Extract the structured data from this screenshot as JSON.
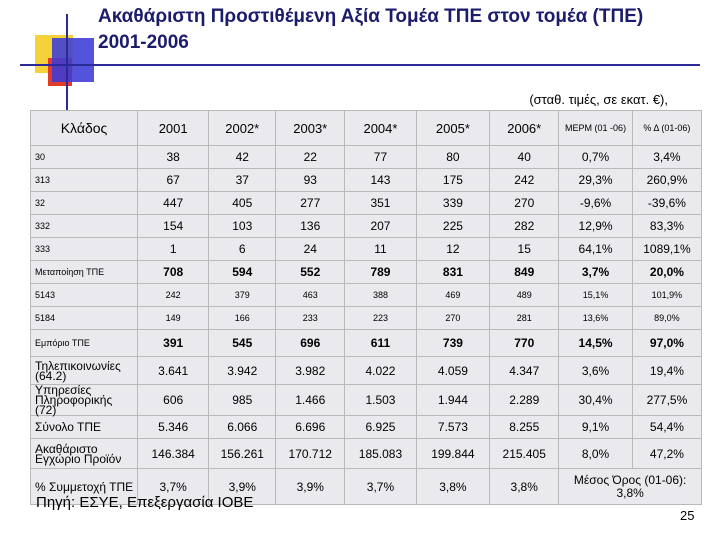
{
  "title": "Ακαθάριστη Προστιθέμενη Αξία Τομέα ΤΠΕ στον τομέα (ΤΠΕ) 2001-2006",
  "units_note": "(σταθ. τιμές, σε εκατ. €),",
  "table": {
    "headers": [
      "Κλάδος",
      "2001",
      "2002*",
      "2003*",
      "2004*",
      "2005*",
      "2006*",
      "ΜΕΡΜ (01 -06)",
      "% Δ (01-06)"
    ],
    "rows": [
      {
        "label": "30",
        "values": [
          "38",
          "42",
          "22",
          "77",
          "80",
          "40",
          "0,7%",
          "3,4%"
        ]
      },
      {
        "label": "313",
        "values": [
          "67",
          "37",
          "93",
          "143",
          "175",
          "242",
          "29,3%",
          "260,9%"
        ]
      },
      {
        "label": "32",
        "values": [
          "447",
          "405",
          "277",
          "351",
          "339",
          "270",
          "-9,6%",
          "-39,6%"
        ]
      },
      {
        "label": "332",
        "values": [
          "154",
          "103",
          "136",
          "207",
          "225",
          "282",
          "12,9%",
          "83,3%"
        ]
      },
      {
        "label": "333",
        "values": [
          "1",
          "6",
          "24",
          "11",
          "12",
          "15",
          "64,1%",
          "1089,1%"
        ]
      },
      {
        "label": "Μεταποίηση ΤΠΕ",
        "values": [
          "708",
          "594",
          "552",
          "789",
          "831",
          "849",
          "3,7%",
          "20,0%"
        ]
      },
      {
        "label": "5143",
        "values": [
          "242",
          "379",
          "463",
          "388",
          "469",
          "489",
          "15,1%",
          "101,9%"
        ]
      },
      {
        "label": "5184",
        "values": [
          "149",
          "166",
          "233",
          "223",
          "270",
          "281",
          "13,6%",
          "89,0%"
        ]
      },
      {
        "label": "Εμπόριο ΤΠΕ",
        "values": [
          "391",
          "545",
          "696",
          "611",
          "739",
          "770",
          "14,5%",
          "97,0%"
        ]
      },
      {
        "label": "Τηλεπικοινωνίες (64.2)",
        "values": [
          "3.641",
          "3.942",
          "3.982",
          "4.022",
          "4.059",
          "4.347",
          "3,6%",
          "19,4%"
        ]
      },
      {
        "label": "Υπηρεσίες Πληροφορικής (72)",
        "values": [
          "606",
          "985",
          "1.466",
          "1.503",
          "1.944",
          "2.289",
          "30,4%",
          "277,5%"
        ]
      },
      {
        "label": "Σύνολο ΤΠΕ",
        "values": [
          "5.346",
          "6.066",
          "6.696",
          "6.925",
          "7.573",
          "8.255",
          "9,1%",
          "54,4%"
        ]
      },
      {
        "label": "Ακαθάριστο Εγχώριο Προϊόν",
        "values": [
          "146.384",
          "156.261",
          "170.712",
          "185.083",
          "199.844",
          "215.405",
          "8,0%",
          "47,2%"
        ]
      },
      {
        "label": "% Συμμετοχή ΤΠΕ",
        "values": [
          "3,7%",
          "3,9%",
          "3,9%",
          "3,7%",
          "3,8%",
          "3,8%"
        ],
        "merged": "Μέσος Όρος (01-06): 3,8%"
      }
    ]
  },
  "source": "Πηγή: ΕΣΥΕ, Επεξεργασία ΙΟΒΕ",
  "page_number": "25",
  "colors": {
    "title": "#1c1c6c",
    "cell_background": "#e9e9ee",
    "accent_yellow": "#f5d23a",
    "accent_red": "#e03b2b",
    "accent_blue": "#3b3bd6"
  }
}
